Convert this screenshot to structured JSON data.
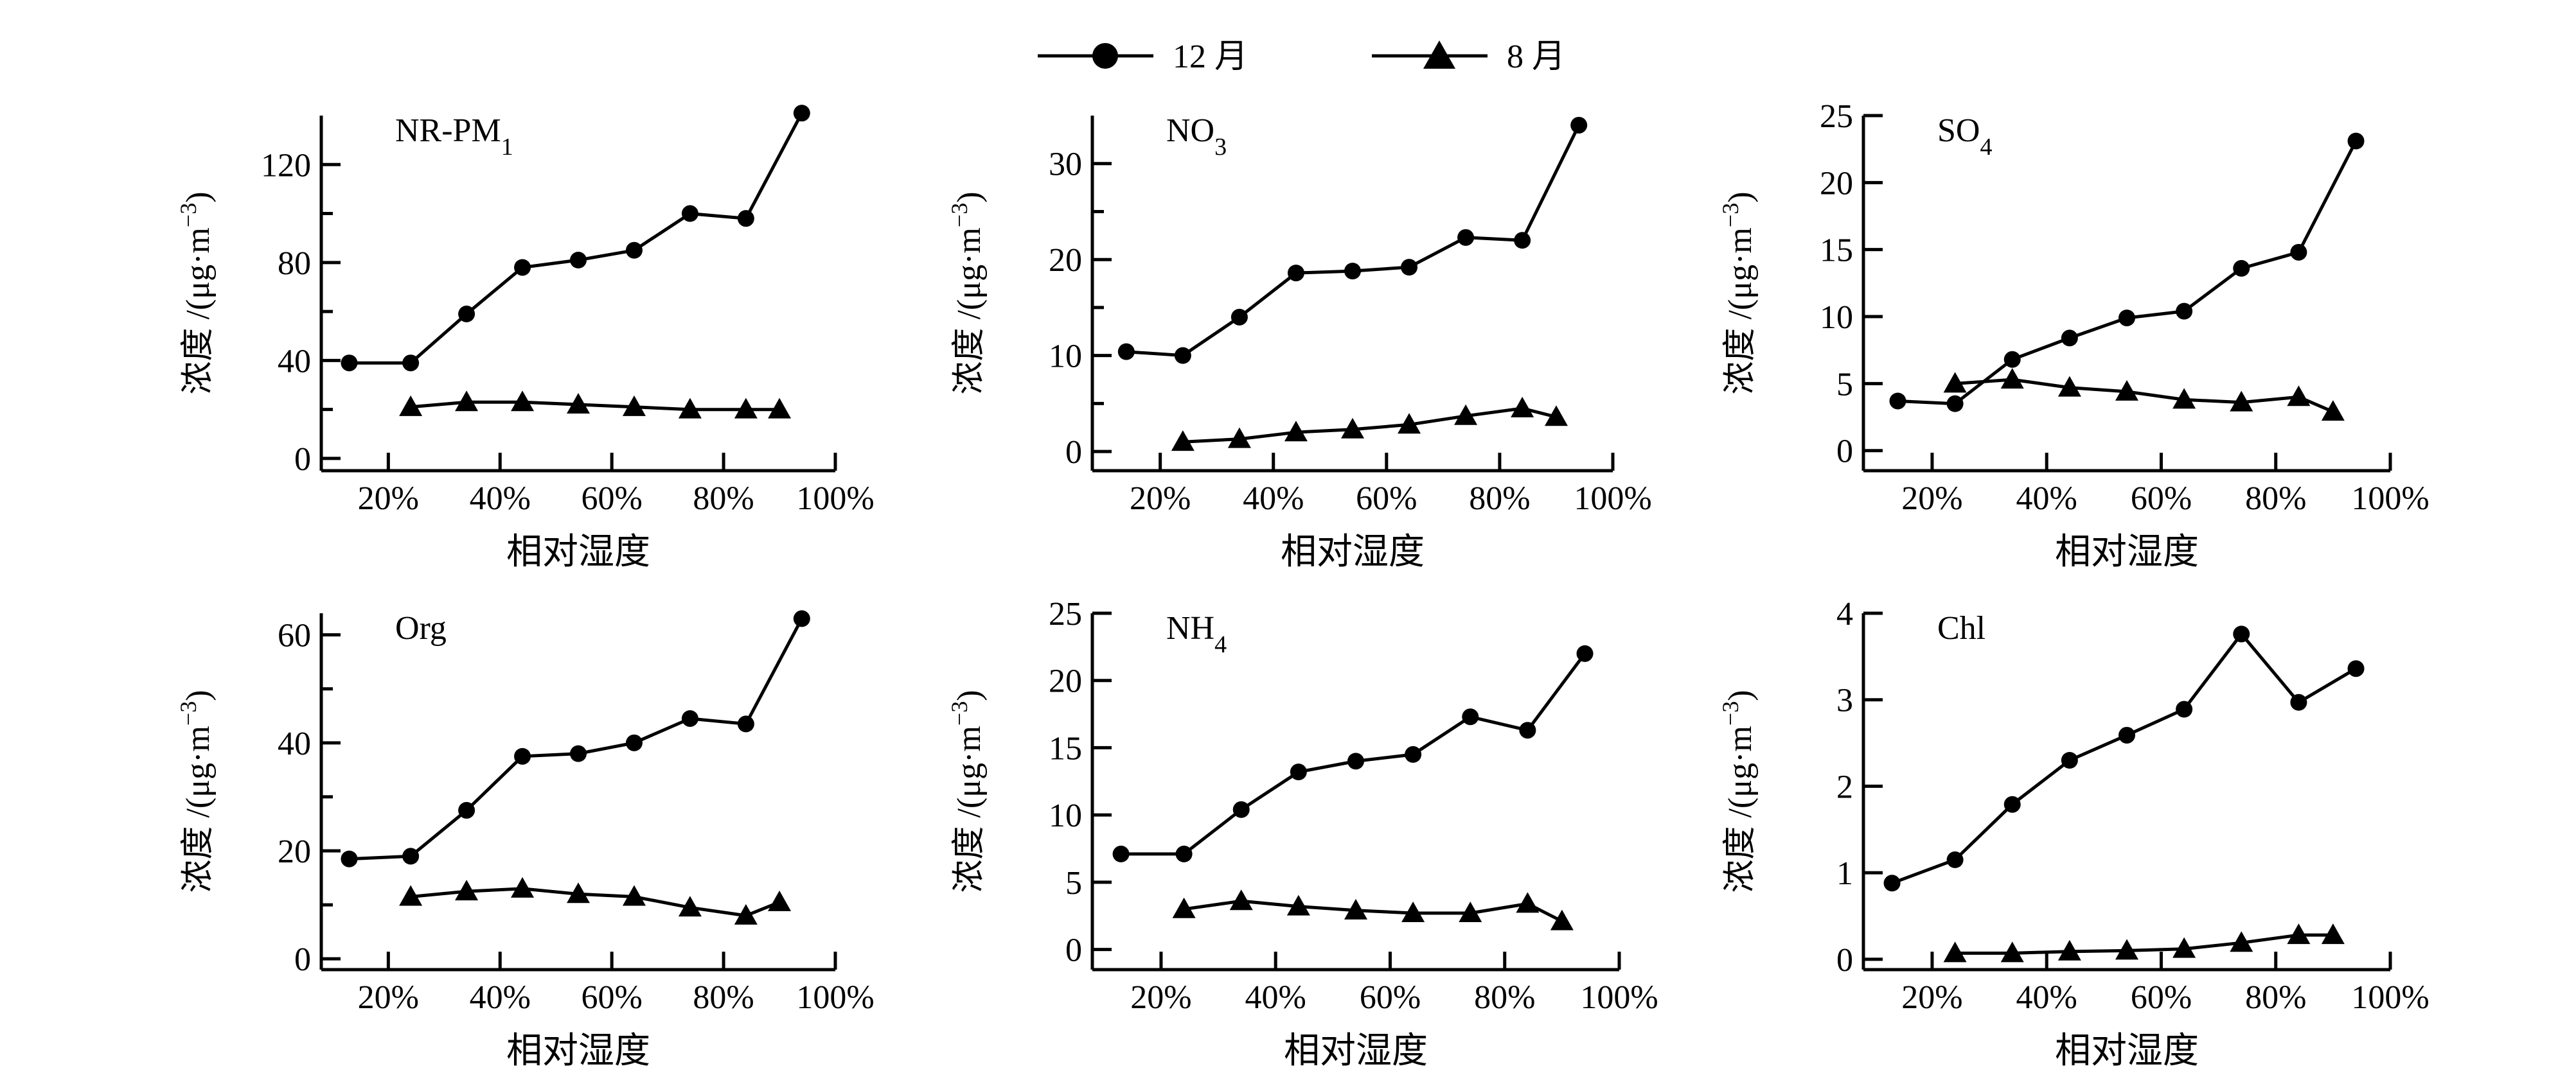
{
  "legend": {
    "items": [
      {
        "label": "12 月",
        "marker": "circle"
      },
      {
        "label": "8 月",
        "marker": "triangle"
      }
    ]
  },
  "chart_data": [
    {
      "type": "line",
      "title": "NR-PM",
      "title_sub": "1",
      "title_sub_kind": "sub",
      "xlabel": "相对湿度",
      "ylabel": "浓度 /(μg·m",
      "ylabel_sup": "−3",
      "ylabel_tail": ")",
      "ylim": [
        -5,
        140
      ],
      "yticks": [
        0,
        40,
        80,
        120
      ],
      "yminor": [
        20,
        60,
        100
      ],
      "xticks": [
        0.2,
        0.4,
        0.6,
        0.8,
        1.0
      ],
      "xticklabels": [
        "20%",
        "40%",
        "60%",
        "80%",
        "100%"
      ],
      "xlim": [
        0.08,
        1.0
      ],
      "series": [
        {
          "name": "12 月",
          "marker": "circle",
          "x": [
            0.13,
            0.24,
            0.34,
            0.44,
            0.54,
            0.64,
            0.74,
            0.84,
            0.94
          ],
          "y": [
            39,
            39,
            59,
            78,
            81,
            85,
            100,
            98,
            141
          ]
        },
        {
          "name": "8 月",
          "marker": "triangle",
          "x": [
            0.24,
            0.34,
            0.44,
            0.54,
            0.64,
            0.74,
            0.84,
            0.9
          ],
          "y": [
            21,
            23,
            23,
            22,
            21,
            20,
            20,
            20
          ]
        }
      ]
    },
    {
      "type": "line",
      "title": "NO",
      "title_sub": "3",
      "title_sub_kind": "sub",
      "xlabel": "相对湿度",
      "ylabel": "浓度 /(μg·m",
      "ylabel_sup": "−3",
      "ylabel_tail": ")",
      "ylim": [
        -2,
        35
      ],
      "yticks": [
        0,
        10,
        20,
        30
      ],
      "yminor": [
        5,
        15,
        25
      ],
      "xticks": [
        0.2,
        0.4,
        0.6,
        0.8,
        1.0
      ],
      "xticklabels": [
        "20%",
        "40%",
        "60%",
        "80%",
        "100%"
      ],
      "xlim": [
        0.08,
        1.0
      ],
      "series": [
        {
          "name": "12 月",
          "marker": "circle",
          "x": [
            0.14,
            0.24,
            0.34,
            0.44,
            0.54,
            0.64,
            0.74,
            0.84,
            0.94
          ],
          "y": [
            10.4,
            10.0,
            14.0,
            18.6,
            18.8,
            19.2,
            22.3,
            22.0,
            34.0
          ]
        },
        {
          "name": "8 月",
          "marker": "triangle",
          "x": [
            0.24,
            0.34,
            0.44,
            0.54,
            0.64,
            0.74,
            0.84,
            0.9
          ],
          "y": [
            1.0,
            1.3,
            2.0,
            2.3,
            2.8,
            3.7,
            4.5,
            3.6
          ]
        }
      ]
    },
    {
      "type": "line",
      "title": "SO",
      "title_sub": "4",
      "title_sub_kind": "sub",
      "xlabel": "相对湿度",
      "ylabel": "浓度 /(μg·m",
      "ylabel_sup": "−3",
      "ylabel_tail": ")",
      "ylim": [
        -1.5,
        25
      ],
      "yticks": [
        0,
        5,
        10,
        15,
        20,
        25
      ],
      "yminor": [],
      "xticks": [
        0.2,
        0.4,
        0.6,
        0.8,
        1.0
      ],
      "xticklabels": [
        "20%",
        "40%",
        "60%",
        "80%",
        "100%"
      ],
      "xlim": [
        0.08,
        1.0
      ],
      "series": [
        {
          "name": "12 月",
          "marker": "circle",
          "x": [
            0.14,
            0.24,
            0.34,
            0.44,
            0.54,
            0.64,
            0.74,
            0.84,
            0.94
          ],
          "y": [
            3.7,
            3.5,
            6.8,
            8.4,
            9.9,
            10.4,
            13.6,
            14.8,
            23.1
          ]
        },
        {
          "name": "8 月",
          "marker": "triangle",
          "x": [
            0.24,
            0.34,
            0.44,
            0.54,
            0.64,
            0.74,
            0.84,
            0.9
          ],
          "y": [
            5.0,
            5.3,
            4.7,
            4.4,
            3.8,
            3.6,
            4.0,
            2.9
          ]
        }
      ]
    },
    {
      "type": "line",
      "title": "Org",
      "title_sub": "",
      "title_sub_kind": "sub",
      "xlabel": "相对湿度",
      "ylabel": "浓度 /(μg·m",
      "ylabel_sup": "−3",
      "ylabel_tail": ")",
      "ylim": [
        -2,
        64
      ],
      "yticks": [
        0,
        20,
        40,
        60
      ],
      "yminor": [
        10,
        30,
        50
      ],
      "xticks": [
        0.2,
        0.4,
        0.6,
        0.8,
        1.0
      ],
      "xticklabels": [
        "20%",
        "40%",
        "60%",
        "80%",
        "100%"
      ],
      "xlim": [
        0.08,
        1.0
      ],
      "series": [
        {
          "name": "12 月",
          "marker": "circle",
          "x": [
            0.13,
            0.24,
            0.34,
            0.44,
            0.54,
            0.64,
            0.74,
            0.84,
            0.94
          ],
          "y": [
            18.5,
            19.0,
            27.5,
            37.5,
            38.0,
            40.0,
            44.5,
            43.5,
            63.0
          ]
        },
        {
          "name": "8 月",
          "marker": "triangle",
          "x": [
            0.24,
            0.34,
            0.44,
            0.54,
            0.64,
            0.74,
            0.84,
            0.9
          ],
          "y": [
            11.5,
            12.5,
            13.0,
            12.0,
            11.5,
            9.5,
            8.0,
            10.5
          ]
        }
      ]
    },
    {
      "type": "line",
      "title": "NH",
      "title_sub": "4",
      "title_sub_kind": "sub",
      "xlabel": "相对湿度",
      "ylabel": "浓度 /(μg·m",
      "ylabel_sup": "−3",
      "ylabel_tail": ")",
      "ylim": [
        -1.5,
        25
      ],
      "yticks": [
        0,
        5,
        10,
        15,
        20,
        25
      ],
      "yminor": [],
      "xticks": [
        0.2,
        0.4,
        0.6,
        0.8,
        1.0
      ],
      "xticklabels": [
        "20%",
        "40%",
        "60%",
        "80%",
        "100%"
      ],
      "xlim": [
        0.08,
        1.0
      ],
      "series": [
        {
          "name": "12 月",
          "marker": "circle",
          "x": [
            0.13,
            0.24,
            0.34,
            0.44,
            0.54,
            0.64,
            0.74,
            0.84,
            0.94
          ],
          "y": [
            7.1,
            7.1,
            10.4,
            13.2,
            14.0,
            14.5,
            17.3,
            16.3,
            22.0
          ]
        },
        {
          "name": "8 月",
          "marker": "triangle",
          "x": [
            0.24,
            0.34,
            0.44,
            0.54,
            0.64,
            0.74,
            0.84,
            0.9
          ],
          "y": [
            3.0,
            3.6,
            3.2,
            2.9,
            2.7,
            2.7,
            3.4,
            2.1
          ]
        }
      ]
    },
    {
      "type": "line",
      "title": "Chl",
      "title_sub": "",
      "title_sub_kind": "sub",
      "xlabel": "相对湿度",
      "ylabel": "浓度 /(μg·m",
      "ylabel_sup": "−3",
      "ylabel_tail": ")",
      "ylim": [
        -0.12,
        4
      ],
      "yticks": [
        0,
        1,
        2,
        3,
        4
      ],
      "yminor": [],
      "xticks": [
        0.2,
        0.4,
        0.6,
        0.8,
        1.0
      ],
      "xticklabels": [
        "20%",
        "40%",
        "60%",
        "80%",
        "100%"
      ],
      "xlim": [
        0.08,
        1.0
      ],
      "series": [
        {
          "name": "12 月",
          "marker": "circle",
          "x": [
            0.13,
            0.24,
            0.34,
            0.44,
            0.54,
            0.64,
            0.74,
            0.84,
            0.94
          ],
          "y": [
            0.88,
            1.15,
            1.79,
            2.3,
            2.59,
            2.89,
            3.76,
            2.97,
            3.36
          ]
        },
        {
          "name": "8 月",
          "marker": "triangle",
          "x": [
            0.24,
            0.34,
            0.44,
            0.54,
            0.64,
            0.74,
            0.84,
            0.9
          ],
          "y": [
            0.07,
            0.07,
            0.09,
            0.1,
            0.12,
            0.19,
            0.28,
            0.28
          ]
        }
      ]
    }
  ]
}
